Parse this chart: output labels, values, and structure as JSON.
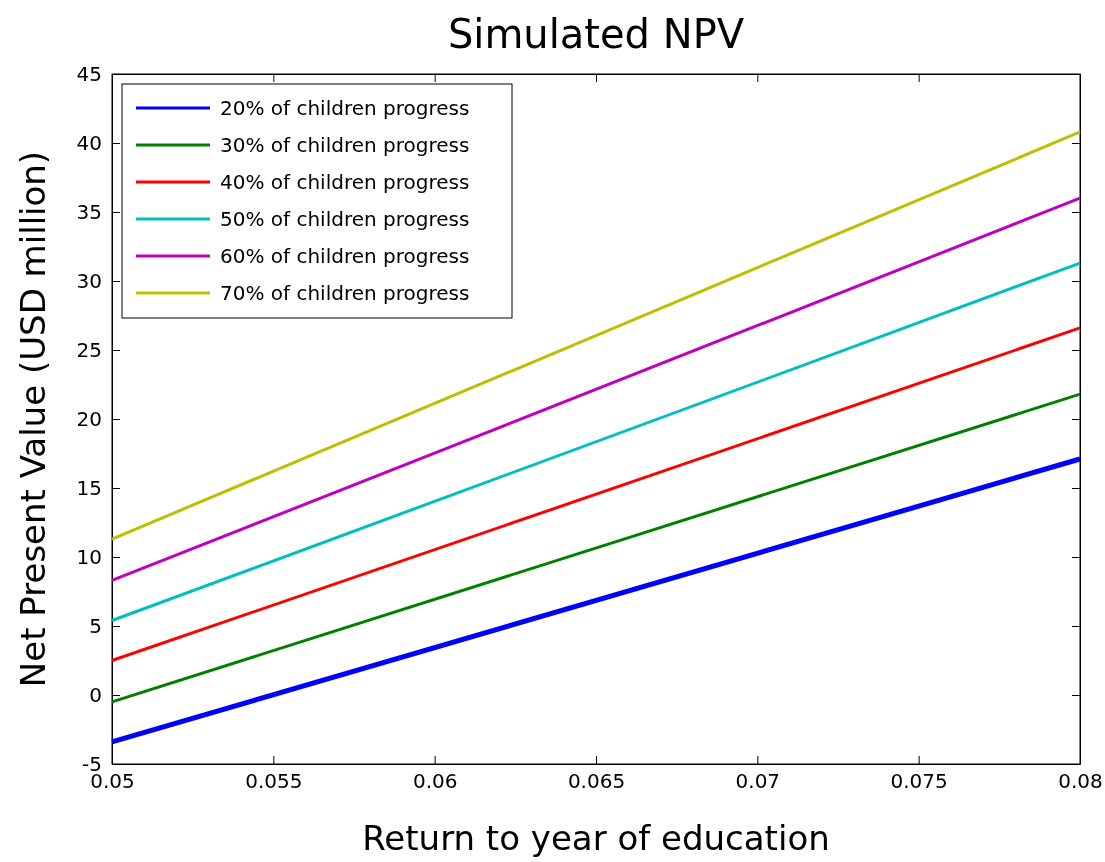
{
  "chart_data": {
    "type": "line",
    "title": "Simulated NPV",
    "xlabel": "Return to year of education",
    "ylabel": "Net Present Value (USD million)",
    "x": [
      0.05,
      0.08
    ],
    "series": [
      {
        "name": "20% of children progress",
        "color": "#0000ff",
        "values": [
          -3.4,
          17.1
        ]
      },
      {
        "name": "30% of children progress",
        "color": "#008000",
        "values": [
          -0.5,
          21.8
        ]
      },
      {
        "name": "40% of children progress",
        "color": "#ff0000",
        "values": [
          2.5,
          26.6
        ]
      },
      {
        "name": "50% of children progress",
        "color": "#00bfbf",
        "values": [
          5.4,
          31.3
        ]
      },
      {
        "name": "60% of children progress",
        "color": "#bf00bf",
        "values": [
          8.3,
          36.0
        ]
      },
      {
        "name": "70% of children progress",
        "color": "#bfbf00",
        "values": [
          11.3,
          40.8
        ]
      }
    ],
    "xlim": [
      0.05,
      0.08
    ],
    "xticks": [
      0.05,
      0.055,
      0.06,
      0.065,
      0.07,
      0.075,
      0.08
    ],
    "ylim": [
      -5,
      45
    ],
    "yticks": [
      -5,
      0,
      5,
      10,
      15,
      20,
      25,
      30,
      35,
      40,
      45
    ],
    "grid": false,
    "legend": "top left",
    "marker": "none",
    "line_style": "solid"
  }
}
